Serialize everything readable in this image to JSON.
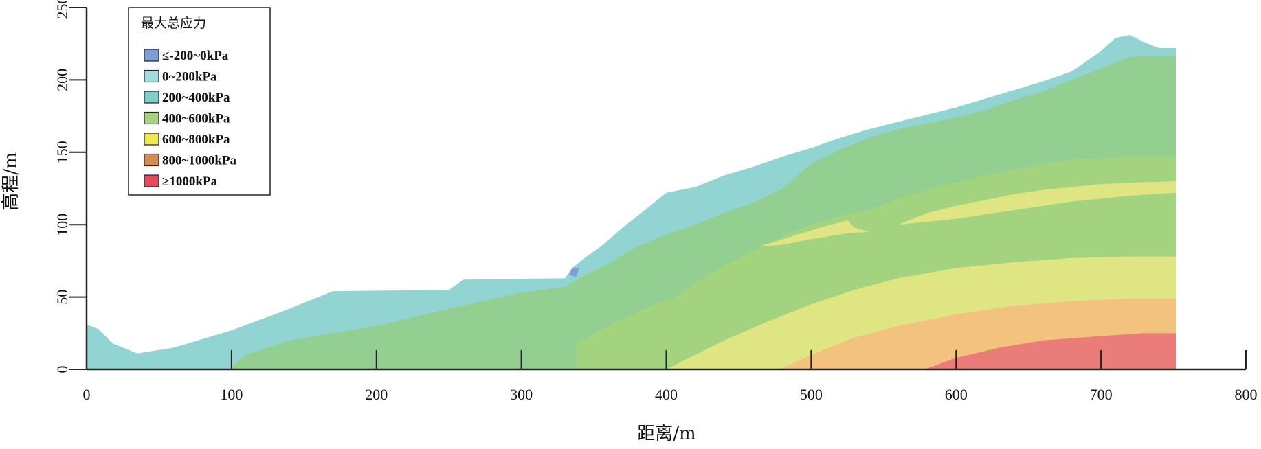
{
  "chart_data": {
    "type": "area",
    "xlabel": "距离/m",
    "ylabel": "高程/m",
    "xlim": [
      0,
      800
    ],
    "ylim": [
      0,
      250
    ],
    "x_ticks": [
      0,
      100,
      200,
      300,
      400,
      500,
      600,
      700,
      800
    ],
    "y_ticks": [
      0,
      50,
      100,
      150,
      200,
      250
    ],
    "legend": {
      "title": "最大总应力",
      "placement": "top-left",
      "entries": [
        {
          "label": "≤-200~0kPa",
          "color": "#7f9fd6"
        },
        {
          "label": "0~200kPa",
          "color": "#a2dbdc"
        },
        {
          "label": "200~400kPa",
          "color": "#7fcfc9"
        },
        {
          "label": "400~600kPa",
          "color": "#a4d47f"
        },
        {
          "label": "600~800kPa",
          "color": "#ede84e"
        },
        {
          "label": "800~1000kPa",
          "color": "#d98a4f"
        },
        {
          "label": "≥1000kPa",
          "color": "#e24d5c"
        }
      ]
    },
    "zones": [
      {
        "name": "200~400kPa",
        "fill": "#91d4d2",
        "points": [
          [
            0,
            31
          ],
          [
            8,
            28
          ],
          [
            18,
            18
          ],
          [
            35,
            11
          ],
          [
            60,
            15
          ],
          [
            100,
            27
          ],
          [
            135,
            40
          ],
          [
            165,
            52
          ],
          [
            170,
            54
          ],
          [
            250,
            55
          ],
          [
            260,
            62
          ],
          [
            330,
            63
          ],
          [
            335,
            70
          ],
          [
            345,
            78
          ],
          [
            355,
            85
          ],
          [
            370,
            98
          ],
          [
            385,
            110
          ],
          [
            395,
            118
          ],
          [
            400,
            122
          ],
          [
            420,
            126
          ],
          [
            440,
            134
          ],
          [
            460,
            140
          ],
          [
            480,
            147
          ],
          [
            500,
            153
          ],
          [
            520,
            160
          ],
          [
            540,
            166
          ],
          [
            560,
            171
          ],
          [
            580,
            176
          ],
          [
            600,
            181
          ],
          [
            620,
            187
          ],
          [
            640,
            193
          ],
          [
            660,
            199
          ],
          [
            680,
            206
          ],
          [
            700,
            220
          ],
          [
            710,
            229
          ],
          [
            720,
            231
          ],
          [
            730,
            226
          ],
          [
            740,
            222
          ],
          [
            752,
            222
          ],
          [
            752,
            0
          ],
          [
            0,
            0
          ]
        ]
      },
      {
        "name": "400~600kPa (outer)",
        "fill": "#93cf91",
        "points": [
          [
            100,
            2
          ],
          [
            110,
            10
          ],
          [
            140,
            20
          ],
          [
            200,
            30
          ],
          [
            250,
            42
          ],
          [
            300,
            53
          ],
          [
            330,
            57
          ],
          [
            340,
            63
          ],
          [
            360,
            73
          ],
          [
            380,
            85
          ],
          [
            400,
            93
          ],
          [
            420,
            100
          ],
          [
            440,
            108
          ],
          [
            460,
            115
          ],
          [
            480,
            125
          ],
          [
            500,
            142
          ],
          [
            520,
            152
          ],
          [
            540,
            160
          ],
          [
            560,
            166
          ],
          [
            580,
            170
          ],
          [
            600,
            174
          ],
          [
            620,
            179
          ],
          [
            640,
            186
          ],
          [
            660,
            192
          ],
          [
            680,
            200
          ],
          [
            700,
            208
          ],
          [
            720,
            216
          ],
          [
            752,
            217
          ],
          [
            752,
            0
          ],
          [
            100,
            0
          ]
        ]
      },
      {
        "name": "400~600kPa (inner)",
        "fill": "#a4d37f",
        "points": [
          [
            338,
            0
          ],
          [
            338,
            18
          ],
          [
            360,
            30
          ],
          [
            390,
            44
          ],
          [
            410,
            52
          ],
          [
            420,
            60
          ],
          [
            440,
            72
          ],
          [
            460,
            82
          ],
          [
            480,
            92
          ],
          [
            500,
            100
          ],
          [
            520,
            106
          ],
          [
            540,
            110
          ],
          [
            560,
            118
          ],
          [
            580,
            124
          ],
          [
            600,
            129
          ],
          [
            620,
            134
          ],
          [
            640,
            138
          ],
          [
            660,
            142
          ],
          [
            680,
            145
          ],
          [
            700,
            146
          ],
          [
            720,
            147
          ],
          [
            752,
            147
          ],
          [
            752,
            0
          ]
        ]
      },
      {
        "name": "600~800kPa (band)",
        "fill": "#dfe583",
        "points": [
          [
            560,
            100
          ],
          [
            580,
            108
          ],
          [
            600,
            113
          ],
          [
            620,
            117
          ],
          [
            640,
            121
          ],
          [
            660,
            124
          ],
          [
            680,
            126
          ],
          [
            700,
            128
          ],
          [
            720,
            129
          ],
          [
            752,
            130
          ],
          [
            752,
            122
          ],
          [
            720,
            120
          ],
          [
            700,
            118
          ],
          [
            680,
            116
          ],
          [
            660,
            113
          ],
          [
            640,
            110
          ],
          [
            620,
            107
          ],
          [
            600,
            104
          ],
          [
            580,
            102
          ]
        ]
      },
      {
        "name": "600~800kPa (lens)",
        "fill": "#dfe583",
        "points": [
          [
            465,
            85
          ],
          [
            490,
            93
          ],
          [
            510,
            99
          ],
          [
            525,
            103
          ],
          [
            530,
            98
          ],
          [
            540,
            95
          ],
          [
            525,
            94
          ],
          [
            500,
            90
          ],
          [
            480,
            86
          ]
        ]
      },
      {
        "name": "600~800kPa (lower)",
        "fill": "#dfe583",
        "points": [
          [
            400,
            0
          ],
          [
            420,
            10
          ],
          [
            440,
            20
          ],
          [
            470,
            33
          ],
          [
            500,
            45
          ],
          [
            530,
            55
          ],
          [
            560,
            63
          ],
          [
            600,
            70
          ],
          [
            640,
            74
          ],
          [
            680,
            77
          ],
          [
            720,
            78
          ],
          [
            752,
            78
          ],
          [
            752,
            0
          ]
        ]
      },
      {
        "name": "800~1000kPa",
        "fill": "#f3c27f",
        "points": [
          [
            478,
            0
          ],
          [
            500,
            10
          ],
          [
            530,
            22
          ],
          [
            560,
            30
          ],
          [
            600,
            38
          ],
          [
            640,
            44
          ],
          [
            680,
            47
          ],
          [
            720,
            49
          ],
          [
            752,
            49
          ],
          [
            752,
            0
          ]
        ]
      },
      {
        "name": "≥1000kPa",
        "fill": "#ea7c79",
        "points": [
          [
            578,
            0
          ],
          [
            600,
            8
          ],
          [
            630,
            15
          ],
          [
            660,
            20
          ],
          [
            700,
            23
          ],
          [
            730,
            25
          ],
          [
            752,
            25
          ],
          [
            752,
            0
          ]
        ]
      },
      {
        "name": "≤-200~0kPa",
        "fill": "#7f9fd6",
        "points": [
          [
            335,
            70
          ],
          [
            340,
            70
          ],
          [
            338,
            64
          ],
          [
            333,
            65
          ]
        ]
      }
    ]
  }
}
